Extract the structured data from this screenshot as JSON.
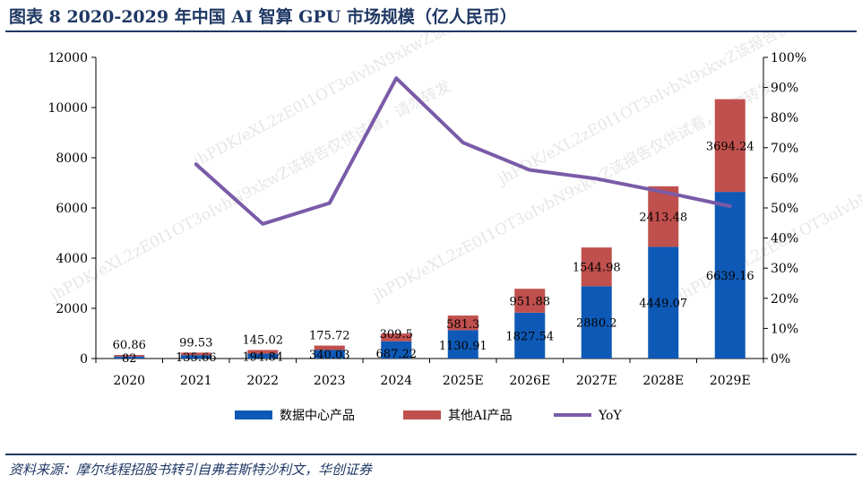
{
  "header": {
    "title": "图表 8   2020-2029 年中国 AI 智算 GPU 市场规模（亿人民币）"
  },
  "footer": {
    "source": "资料来源：摩尔线程招股书转引自弗若斯特沙利文，华创证券"
  },
  "watermark": {
    "text": "jhPDK/eXL2zE0I1OT3oIvbN9xkwZ该报告仅供试看，请勿转发"
  },
  "colors": {
    "datacenter": "#0e59b5",
    "other_ai": "#c0504d",
    "yoy": "#7a5ba8",
    "title": "#1f3864"
  },
  "chart_data": {
    "type": "bar",
    "stacked": true,
    "title": "2020-2029 年中国 AI 智算 GPU 市场规模（亿人民币）",
    "categories": [
      "2020",
      "2021",
      "2022",
      "2023",
      "2024",
      "2025E",
      "2026E",
      "2027E",
      "2028E",
      "2029E"
    ],
    "series": [
      {
        "name": "数据中心产品",
        "type": "bar",
        "axis": "left",
        "values": [
          82,
          135.66,
          194.84,
          340.03,
          687.22,
          1130.91,
          1827.54,
          2880.2,
          4449.07,
          6639.16
        ],
        "labels": [
          "82",
          "135.66",
          "194.84",
          "340.03",
          "687.22",
          "1130.91",
          "1827.54",
          "2880.2",
          "4449.07",
          "6639.16"
        ]
      },
      {
        "name": "其他AI产品",
        "type": "bar",
        "axis": "left",
        "values": [
          60.86,
          99.53,
          145.02,
          175.72,
          309.5,
          581.3,
          951.88,
          1544.98,
          2413.48,
          3694.24
        ],
        "labels": [
          "60.86",
          "99.53",
          "145.02",
          "175.72",
          "309.5",
          "581.3",
          "951.88",
          "1544.98",
          "2413.48",
          "3694.24"
        ]
      },
      {
        "name": "YoY",
        "type": "line",
        "axis": "right",
        "values": [
          null,
          64.5,
          44.7,
          51.6,
          93.1,
          71.7,
          62.6,
          59.7,
          55.3,
          50.6
        ]
      }
    ],
    "y_left": {
      "min": 0,
      "max": 12000,
      "ticks": [
        "0",
        "2000",
        "4000",
        "6000",
        "8000",
        "10000",
        "12000"
      ]
    },
    "y_right": {
      "min": 0,
      "max": 100,
      "ticks": [
        "0%",
        "10%",
        "20%",
        "30%",
        "40%",
        "50%",
        "60%",
        "70%",
        "80%",
        "90%",
        "100%"
      ]
    },
    "legend": {
      "position": "bottom",
      "items": [
        "数据中心产品",
        "其他AI产品",
        "YoY"
      ]
    },
    "grid": false
  }
}
